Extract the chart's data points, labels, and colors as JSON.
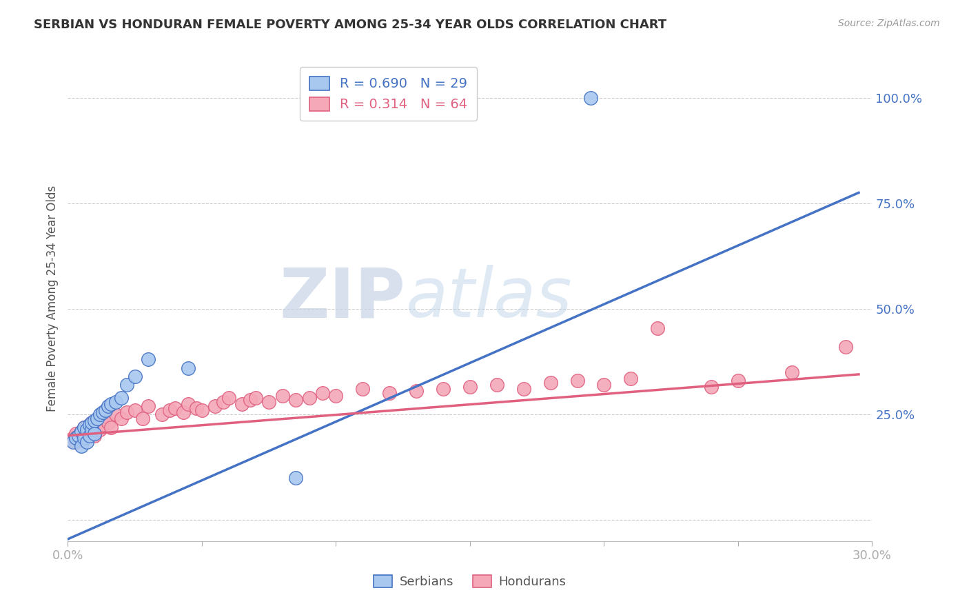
{
  "title": "SERBIAN VS HONDURAN FEMALE POVERTY AMONG 25-34 YEAR OLDS CORRELATION CHART",
  "source": "Source: ZipAtlas.com",
  "ylabel": "Female Poverty Among 25-34 Year Olds",
  "xlim": [
    0.0,
    0.3
  ],
  "ylim": [
    -0.05,
    1.1
  ],
  "xticks": [
    0.0,
    0.05,
    0.1,
    0.15,
    0.2,
    0.25,
    0.3
  ],
  "xtick_labels": [
    "0.0%",
    "",
    "",
    "",
    "",
    "",
    "30.0%"
  ],
  "yticks": [
    0.0,
    0.25,
    0.5,
    0.75,
    1.0
  ],
  "ytick_labels": [
    "",
    "25.0%",
    "50.0%",
    "75.0%",
    "100.0%"
  ],
  "serbian_color": "#A8C8F0",
  "honduran_color": "#F4A8B8",
  "serbian_line_color": "#4472C4",
  "honduran_line_color": "#E06080",
  "legend_R_serbian": "R = 0.690",
  "legend_N_serbian": "N = 29",
  "legend_R_honduran": "R = 0.314",
  "legend_N_honduran": "N = 64",
  "watermark_zip": "ZIP",
  "watermark_atlas": "atlas",
  "background_color": "#FFFFFF",
  "grid_color": "#CCCCCC",
  "tick_label_color": "#4472C4",
  "serbian_scatter_x": [
    0.002,
    0.003,
    0.004,
    0.005,
    0.005,
    0.006,
    0.006,
    0.007,
    0.007,
    0.008,
    0.008,
    0.009,
    0.009,
    0.01,
    0.01,
    0.011,
    0.012,
    0.013,
    0.014,
    0.015,
    0.016,
    0.018,
    0.02,
    0.022,
    0.025,
    0.03,
    0.045,
    0.085,
    0.195
  ],
  "serbian_scatter_y": [
    0.185,
    0.195,
    0.2,
    0.175,
    0.21,
    0.195,
    0.22,
    0.185,
    0.215,
    0.2,
    0.225,
    0.215,
    0.23,
    0.205,
    0.235,
    0.24,
    0.25,
    0.255,
    0.26,
    0.27,
    0.275,
    0.28,
    0.29,
    0.32,
    0.34,
    0.38,
    0.36,
    0.1,
    1.0
  ],
  "honduran_scatter_x": [
    0.001,
    0.002,
    0.003,
    0.003,
    0.004,
    0.005,
    0.005,
    0.006,
    0.006,
    0.007,
    0.007,
    0.008,
    0.008,
    0.009,
    0.009,
    0.01,
    0.01,
    0.011,
    0.012,
    0.013,
    0.014,
    0.015,
    0.016,
    0.018,
    0.02,
    0.022,
    0.025,
    0.028,
    0.03,
    0.035,
    0.038,
    0.04,
    0.043,
    0.045,
    0.048,
    0.05,
    0.055,
    0.058,
    0.06,
    0.065,
    0.068,
    0.07,
    0.075,
    0.08,
    0.085,
    0.09,
    0.095,
    0.1,
    0.11,
    0.12,
    0.13,
    0.14,
    0.15,
    0.16,
    0.17,
    0.18,
    0.19,
    0.2,
    0.21,
    0.22,
    0.24,
    0.25,
    0.27,
    0.29
  ],
  "honduran_scatter_y": [
    0.19,
    0.195,
    0.185,
    0.205,
    0.2,
    0.19,
    0.21,
    0.195,
    0.22,
    0.2,
    0.215,
    0.205,
    0.225,
    0.21,
    0.23,
    0.2,
    0.22,
    0.235,
    0.215,
    0.225,
    0.24,
    0.23,
    0.22,
    0.25,
    0.24,
    0.255,
    0.26,
    0.24,
    0.27,
    0.25,
    0.26,
    0.265,
    0.255,
    0.275,
    0.265,
    0.26,
    0.27,
    0.28,
    0.29,
    0.275,
    0.285,
    0.29,
    0.28,
    0.295,
    0.285,
    0.29,
    0.3,
    0.295,
    0.31,
    0.3,
    0.305,
    0.31,
    0.315,
    0.32,
    0.31,
    0.325,
    0.33,
    0.32,
    0.335,
    0.455,
    0.315,
    0.33,
    0.35,
    0.41
  ],
  "serbian_trend_x": [
    0.0,
    0.295
  ],
  "serbian_trend_y": [
    -0.045,
    0.775
  ],
  "honduran_trend_x": [
    0.0,
    0.295
  ],
  "honduran_trend_y": [
    0.2,
    0.345
  ]
}
